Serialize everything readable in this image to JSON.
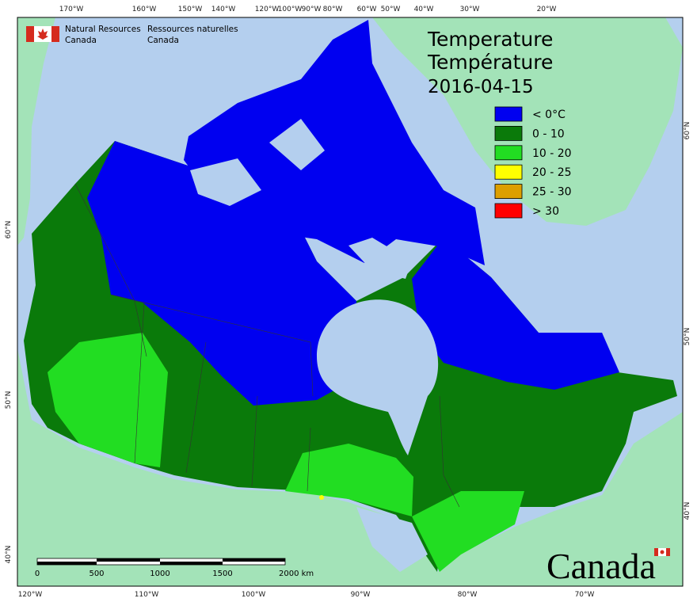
{
  "header": {
    "title_en": "Temperature",
    "title_fr": "Température",
    "date": "2016-04-15"
  },
  "agency": {
    "en": [
      "Natural Resources",
      "Canada"
    ],
    "fr": [
      "Ressources naturelles",
      "Canada"
    ]
  },
  "legend": {
    "items": [
      {
        "label": "< 0°C",
        "color": "#0000f0"
      },
      {
        "label": "0 - 10",
        "color": "#0a7a0a"
      },
      {
        "label": "10 - 20",
        "color": "#22dd22"
      },
      {
        "label": "20 - 25",
        "color": "#ffff00"
      },
      {
        "label": "25 - 30",
        "color": "#dd9f00"
      },
      {
        "label": "> 30",
        "color": "#ff0000"
      }
    ]
  },
  "graticule": {
    "top": [
      "170°W",
      "160°W",
      "150°W",
      "140°W",
      "120°W",
      "100°W",
      "90°W",
      "80°W",
      "60°W",
      "50°W",
      "40°W",
      "30°W",
      "20°W"
    ],
    "bottom": [
      "120°W",
      "110°W",
      "100°W",
      "90°W",
      "80°W",
      "70°W"
    ],
    "left": [
      "60°N",
      "50°N",
      "40°N"
    ],
    "right": [
      "60°N",
      "50°N",
      "40°N"
    ]
  },
  "scale_bar": {
    "labels": [
      "0",
      "500",
      "1000",
      "1500",
      "2000 km"
    ]
  },
  "wordmark": "Canada"
}
